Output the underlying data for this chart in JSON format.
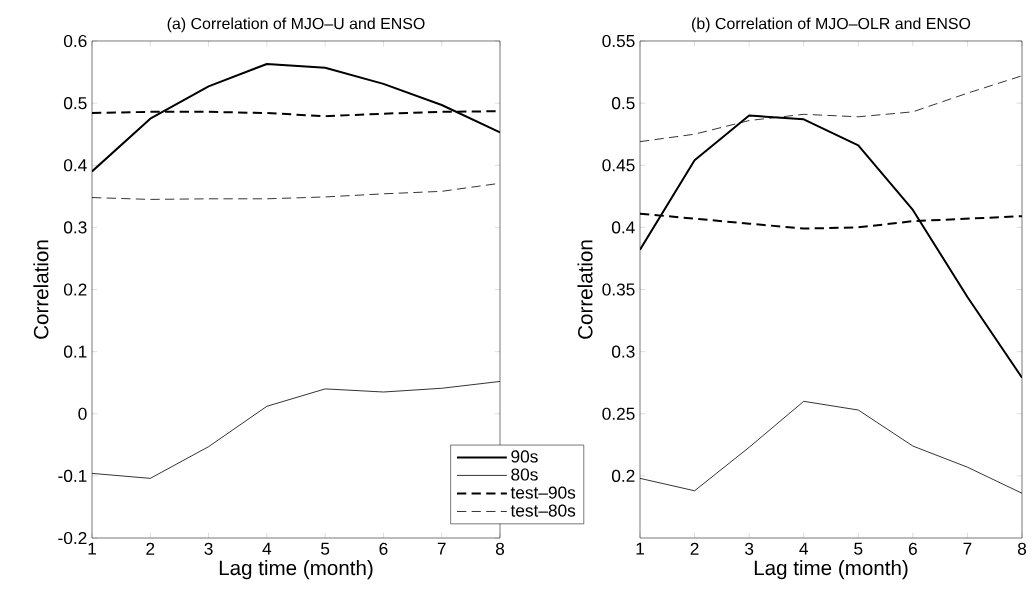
{
  "chart_data": [
    {
      "type": "line",
      "title": "(a) Correlation of MJO–U and ENSO",
      "xlabel": "Lag time (month)",
      "ylabel": "Correlation",
      "x": [
        1,
        2,
        3,
        4,
        5,
        6,
        7,
        8
      ],
      "xlim": [
        1,
        8
      ],
      "ylim": [
        -0.2,
        0.6
      ],
      "xticks": [
        1,
        2,
        3,
        4,
        5,
        6,
        7,
        8
      ],
      "yticks": [
        -0.2,
        -0.1,
        0,
        0.1,
        0.2,
        0.3,
        0.4,
        0.5,
        0.6
      ],
      "legend": "bottom right",
      "grid": false,
      "series": [
        {
          "name": "90s",
          "color": "#000000",
          "line_style": "solid",
          "values": [
            0.39,
            0.475,
            0.527,
            0.563,
            0.557,
            0.531,
            0.497,
            0.453
          ]
        },
        {
          "name": "80s",
          "color": "#000000",
          "line_style": "solid",
          "values": [
            -0.096,
            -0.104,
            -0.053,
            0.012,
            0.04,
            0.035,
            0.041,
            0.052
          ]
        },
        {
          "name": "test–90s",
          "color": "#000000",
          "line_style": "dashed",
          "values": [
            0.484,
            0.486,
            0.486,
            0.484,
            0.479,
            0.483,
            0.486,
            0.487
          ]
        },
        {
          "name": "test–80s",
          "color": "#000000",
          "line_style": "dashed",
          "values": [
            0.348,
            0.345,
            0.346,
            0.346,
            0.349,
            0.354,
            0.358,
            0.371
          ]
        }
      ]
    },
    {
      "type": "line",
      "title": "(b) Correlation of MJO–OLR and ENSO",
      "xlabel": "Lag time (month)",
      "ylabel": "Correlation",
      "x": [
        1,
        2,
        3,
        4,
        5,
        6,
        7,
        8
      ],
      "xlim": [
        1,
        8
      ],
      "ylim": [
        0.15,
        0.55
      ],
      "xticks": [
        1,
        2,
        3,
        4,
        5,
        6,
        7,
        8
      ],
      "yticks": [
        0.2,
        0.25,
        0.3,
        0.35,
        0.4,
        0.45,
        0.5,
        0.55
      ],
      "grid": false,
      "series": [
        {
          "color": "#000000",
          "line_style": "solid",
          "values": [
            0.382,
            0.454,
            0.49,
            0.487,
            0.466,
            0.414,
            0.344,
            0.279
          ]
        },
        {
          "color": "#000000",
          "line_style": "solid",
          "values": [
            0.198,
            0.188,
            0.223,
            0.26,
            0.253,
            0.224,
            0.207,
            0.186
          ]
        },
        {
          "color": "#000000",
          "line_style": "dashed",
          "values": [
            0.411,
            0.407,
            0.403,
            0.399,
            0.4,
            0.405,
            0.407,
            0.409
          ]
        },
        {
          "color": "#000000",
          "line_style": "dashed",
          "values": [
            0.469,
            0.475,
            0.486,
            0.491,
            0.489,
            0.493,
            0.508,
            0.522
          ]
        }
      ]
    }
  ]
}
